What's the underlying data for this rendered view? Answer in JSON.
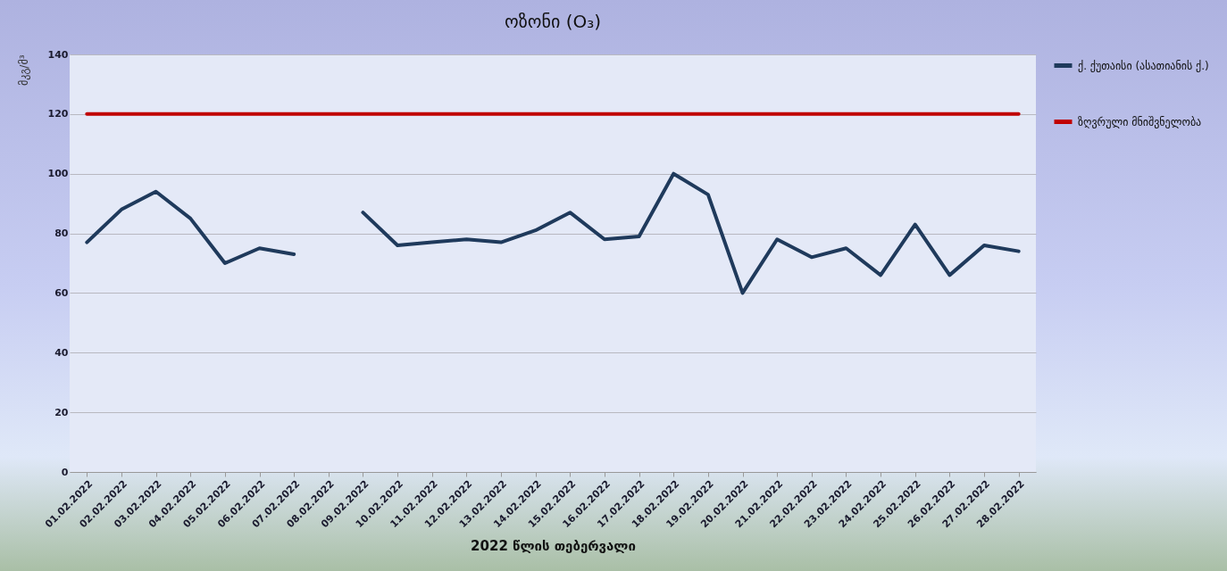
{
  "chart_data": {
    "type": "line",
    "title": "ოზონი (O₃)",
    "xlabel": "2022 წლის თებერვალი",
    "ylabel": "მკგ/მ³",
    "categories": [
      "01.02.2022",
      "02.02.2022",
      "03.02.2022",
      "04.02.2022",
      "05.02.2022",
      "06.02.2022",
      "07.02.2022",
      "08.02.2022",
      "09.02.2022",
      "10.02.2022",
      "11.02.2022",
      "12.02.2022",
      "13.02.2022",
      "14.02.2022",
      "15.02.2022",
      "16.02.2022",
      "17.02.2022",
      "18.02.2022",
      "19.02.2022",
      "20.02.2022",
      "21.02.2022",
      "22.02.2022",
      "23.02.2022",
      "24.02.2022",
      "25.02.2022",
      "26.02.2022",
      "27.02.2022",
      "28.02.2022"
    ],
    "series": [
      {
        "name": "ქ. ქუთაისი (ასათიანის ქ.)",
        "color": "#1f3a5c",
        "values": [
          77,
          88,
          94,
          85,
          70,
          75,
          73,
          null,
          87,
          76,
          77,
          78,
          77,
          81,
          87,
          78,
          79,
          100,
          93,
          60,
          78,
          72,
          75,
          66,
          83,
          66,
          76,
          74
        ]
      },
      {
        "name": "ზღვრული მნიშვნელობა",
        "color": "#c00000",
        "values": [
          120,
          120,
          120,
          120,
          120,
          120,
          120,
          120,
          120,
          120,
          120,
          120,
          120,
          120,
          120,
          120,
          120,
          120,
          120,
          120,
          120,
          120,
          120,
          120,
          120,
          120,
          120,
          120
        ]
      }
    ],
    "ylim": [
      0,
      140
    ],
    "yticks": [
      0,
      20,
      40,
      60,
      80,
      100,
      120,
      140
    ],
    "grid": "y",
    "legend": "right",
    "line_style": "solid"
  }
}
